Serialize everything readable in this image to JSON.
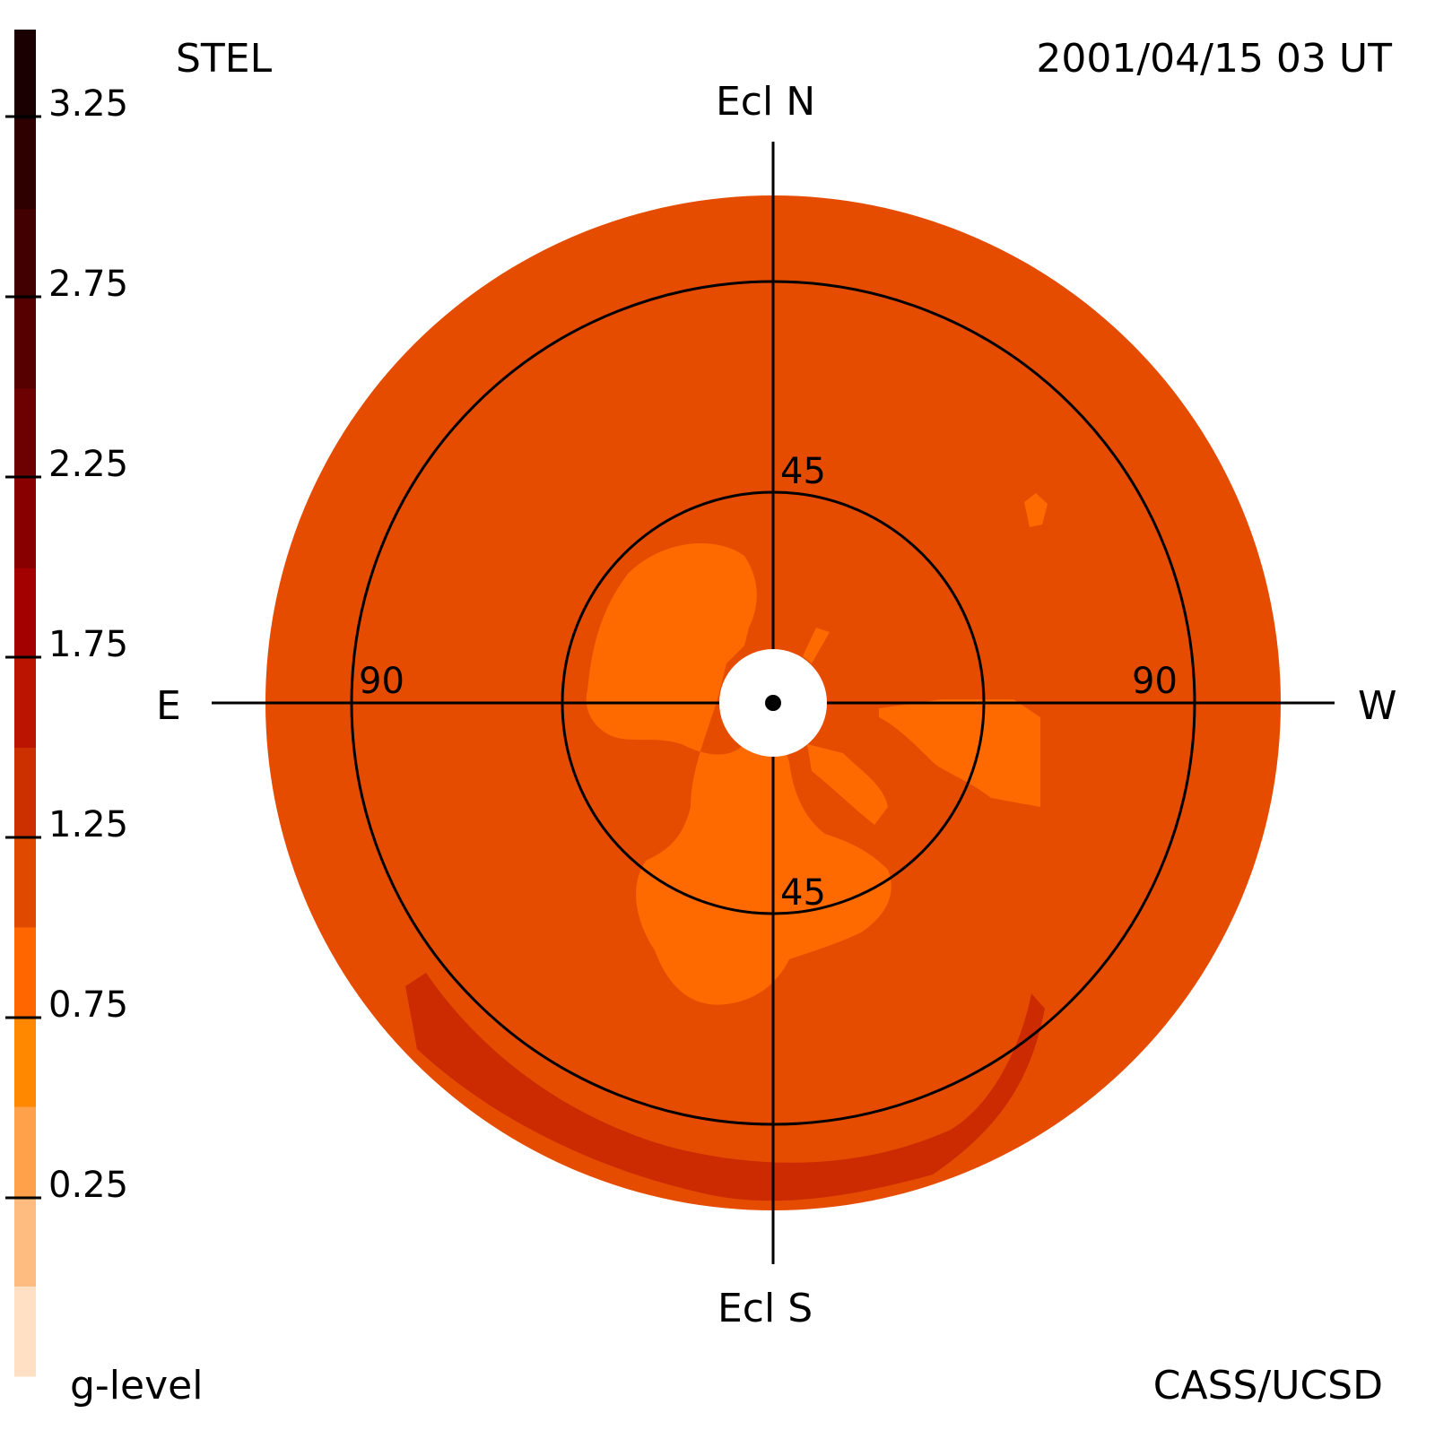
{
  "header": {
    "instrument": "STEL",
    "datetime": "2001/04/15 03 UT"
  },
  "footer": {
    "colorbar_label": "g-level",
    "credit": "CASS/UCSD"
  },
  "directions": {
    "north": "Ecl N",
    "south": "Ecl S",
    "east": "E",
    "west": "W"
  },
  "rings": {
    "inner_north": "45",
    "inner_south": "45",
    "outer_east": "90",
    "outer_west": "90"
  },
  "colorbar": {
    "ticks": [
      "3.25",
      "2.75",
      "2.25",
      "1.75",
      "1.25",
      "0.75",
      "0.25"
    ],
    "swatches": [
      "#1a0000",
      "#2e0000",
      "#420000",
      "#560000",
      "#6d0000",
      "#880000",
      "#a30000",
      "#bb1400",
      "#cc3000",
      "#e04a00",
      "#ff6600",
      "#ff8800",
      "#ffa04a",
      "#ffbc80",
      "#ffe0c4"
    ]
  },
  "colors": {
    "background_level": "#e54c00",
    "low_level": "#ff6a00",
    "high_level": "#cc2a00",
    "occulter": "#ffffff",
    "lines": "#000000"
  }
}
